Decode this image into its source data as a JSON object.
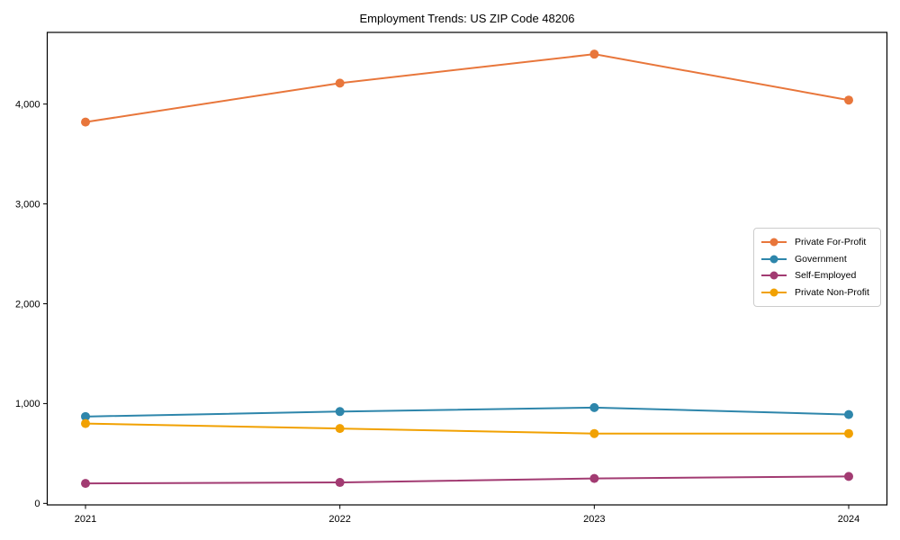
{
  "chart": {
    "title": "Employment Trends: US ZIP Code 48206"
  },
  "chart_data": {
    "type": "line",
    "title": "Employment Trends: US ZIP Code 48206",
    "xlabel": "",
    "ylabel": "",
    "categories": [
      "2021",
      "2022",
      "2023",
      "2024"
    ],
    "series": [
      {
        "name": "Private For-Profit",
        "color": "#e8763b",
        "values": [
          3820,
          4210,
          4500,
          4040
        ]
      },
      {
        "name": "Government",
        "color": "#2e86ab",
        "values": [
          870,
          920,
          960,
          890
        ]
      },
      {
        "name": "Self-Employed",
        "color": "#a23b72",
        "values": [
          200,
          210,
          250,
          270
        ]
      },
      {
        "name": "Private Non-Profit",
        "color": "#f1a102",
        "values": [
          800,
          750,
          700,
          700
        ]
      }
    ],
    "ylim": [
      -15,
      4718
    ],
    "yticks": [
      0,
      1000,
      2000,
      3000,
      4000
    ],
    "ytick_labels": [
      "0",
      "1,000",
      "2,000",
      "3,000",
      "4,000"
    ],
    "grid": false,
    "legend_position": "right-middle",
    "marker": "circle",
    "line_width": 2,
    "marker_radius": 5,
    "axis_color": "#000000",
    "legend_border_color": "#cccccc"
  }
}
